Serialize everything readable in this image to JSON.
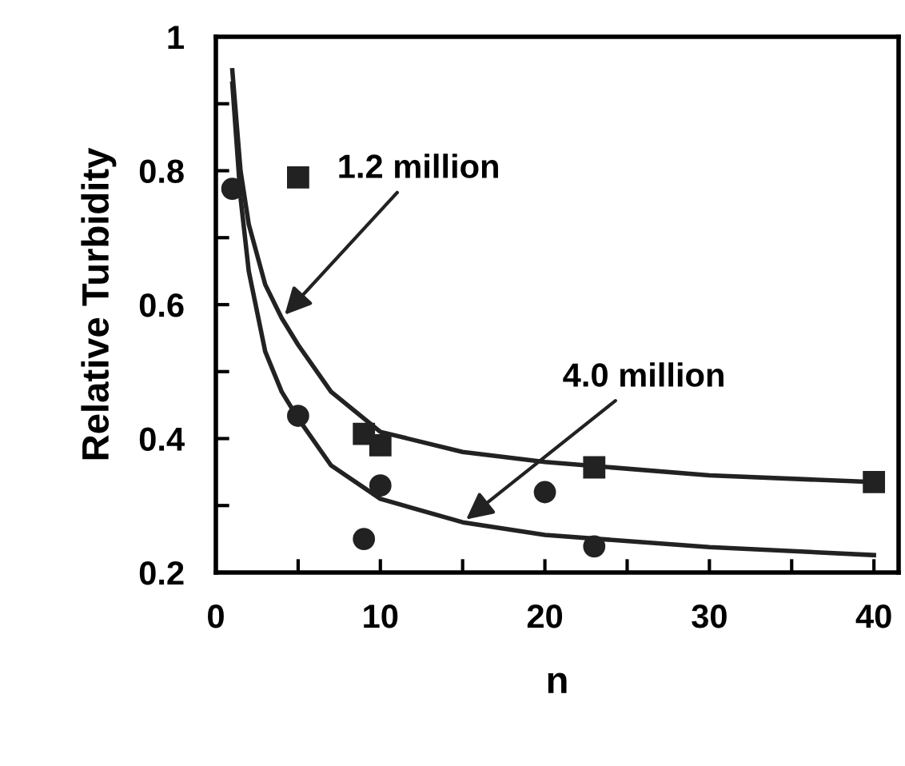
{
  "chart_data": {
    "type": "scatter",
    "xlabel": "n",
    "ylabel": "Relative Turbidity",
    "xlim": [
      0,
      41.5
    ],
    "ylim": [
      0.2,
      1
    ],
    "xticks": [
      0,
      {
        "value": 5,
        "label": null
      },
      10,
      {
        "value": 15,
        "label": null
      },
      20,
      {
        "value": 25,
        "label": null
      },
      30,
      {
        "value": 35,
        "label": null
      },
      40
    ],
    "yticks": [
      {
        "value": 0.2,
        "label": "0.2"
      },
      {
        "value": 0.3,
        "label": null
      },
      {
        "value": 0.4,
        "label": "0.4"
      },
      {
        "value": 0.5,
        "label": null
      },
      {
        "value": 0.6,
        "label": "0.6"
      },
      {
        "value": 0.7,
        "label": null
      },
      {
        "value": 0.8,
        "label": "0.8"
      },
      {
        "value": 0.9,
        "label": null
      },
      {
        "value": 1,
        "label": "1"
      }
    ],
    "grid": false,
    "legend": false,
    "series": [
      {
        "marker": "square",
        "color": "#222222",
        "x": [
          5,
          9,
          10,
          23,
          40
        ],
        "values": [
          0.79,
          0.407,
          0.39,
          0.357,
          0.335
        ]
      },
      {
        "marker": "circle",
        "color": "#222222",
        "x": [
          1,
          5,
          9,
          10,
          20,
          23
        ],
        "values": [
          0.773,
          0.434,
          0.25,
          0.33,
          0.32,
          0.239
        ]
      },
      {
        "type": "line",
        "marker": "none",
        "color": "#222222",
        "x": [
          1,
          1.5,
          2,
          3,
          4,
          5,
          7,
          10,
          15,
          20,
          30,
          40
        ],
        "values": [
          0.95,
          0.8,
          0.72,
          0.63,
          0.58,
          0.54,
          0.47,
          0.41,
          0.38,
          0.365,
          0.345,
          0.335
        ]
      },
      {
        "type": "line",
        "marker": "none",
        "color": "#222222",
        "x": [
          1,
          1.5,
          2,
          3,
          4,
          5,
          7,
          10,
          15,
          20,
          30,
          40
        ],
        "values": [
          0.93,
          0.76,
          0.65,
          0.53,
          0.47,
          0.43,
          0.36,
          0.31,
          0.275,
          0.256,
          0.238,
          0.226
        ]
      }
    ],
    "annotations": [
      {
        "text": "1.2 million",
        "x": 4,
        "y": 0.58
      },
      {
        "text": "4.0 million",
        "x": 15,
        "y": 0.275
      }
    ]
  }
}
